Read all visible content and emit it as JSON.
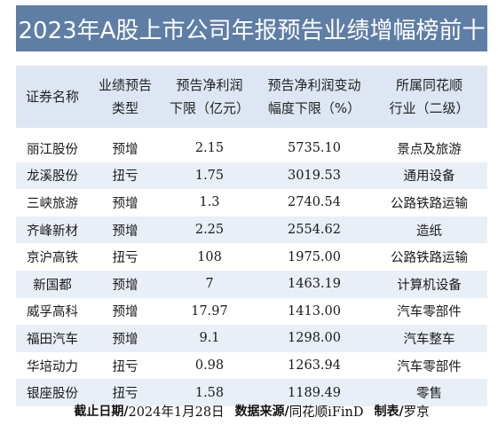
{
  "title": "2023年A股上市公司年报预告业绩增幅榜前十",
  "headers": [
    [
      "证券名称"
    ],
    [
      "业绩预告",
      "类型"
    ],
    [
      "预告净利润",
      "下限（亿元）"
    ],
    [
      "预告净利润变动",
      "幅度下限（%）"
    ],
    [
      "所属同花顺",
      "行业（二级）"
    ]
  ],
  "rows": [
    [
      "丽江股份",
      "预增",
      "2.15",
      "5735.10",
      "景点及旅游"
    ],
    [
      "龙溪股份",
      "扭亏",
      "1.75",
      "3019.53",
      "通用设备"
    ],
    [
      "三峡旅游",
      "预增",
      "1.3",
      "2740.54",
      "公路铁路运输"
    ],
    [
      "齐峰新材",
      "预增",
      "2.25",
      "2554.62",
      "造纸"
    ],
    [
      "京沪高铁",
      "扭亏",
      "108",
      "1975.00",
      "公路铁路运输"
    ],
    [
      "新国都",
      "预增",
      "7",
      "1463.19",
      "计算机设备"
    ],
    [
      "威孚高科",
      "预增",
      "17.97",
      "1413.00",
      "汽车零部件"
    ],
    [
      "福田汽车",
      "预增",
      "9.1",
      "1298.00",
      "汽车整车"
    ],
    [
      "华培动力",
      "扭亏",
      "0.98",
      "1263.94",
      "汽车零部件"
    ],
    [
      "银座股份",
      "扭亏",
      "1.58",
      "1189.49",
      "零售"
    ]
  ],
  "footer": {
    "date_label": "截止日期/",
    "date_value": "2024年1月28日",
    "source_label": "数据来源/",
    "source_value": "同花顺iFinD",
    "maker_label": "制表/",
    "maker_value": "罗京"
  },
  "colors": {
    "title_bg": "#5f7ea6",
    "header_bg": "#dde6f2",
    "alt_row_bg": "#e9eff7"
  }
}
